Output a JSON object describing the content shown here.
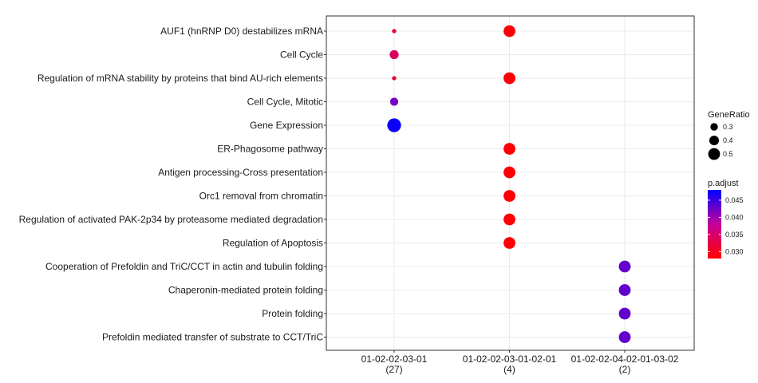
{
  "chart_data": {
    "type": "scatter",
    "title": "",
    "xlabel": "",
    "ylabel": "",
    "grid": true,
    "legend_position": "right",
    "categories_x": [
      {
        "label": "01-02-02-03-01",
        "count": "(27)"
      },
      {
        "label": "01-02-02-03-01-02-01",
        "count": "(4)"
      },
      {
        "label": "01-02-02-04-02-01-03-02",
        "count": "(2)"
      }
    ],
    "categories_y": [
      "AUF1 (hnRNP D0) destabilizes mRNA",
      "Cell Cycle",
      "Regulation of mRNA stability by proteins that bind AU-rich elements",
      "Cell Cycle, Mitotic",
      "Gene Expression",
      "ER-Phagosome pathway",
      "Antigen processing-Cross presentation",
      "Orc1 removal from chromatin",
      "Regulation of activated PAK-2p34 by proteasome mediated degradation",
      "Regulation of Apoptosis",
      "Cooperation of Prefoldin and TriC/CCT  in actin and tubulin folding",
      "Chaperonin-mediated protein folding",
      "Protein folding",
      "Prefoldin mediated transfer of substrate  to CCT/TriC"
    ],
    "points": [
      {
        "x": 0,
        "y": 0,
        "gene_ratio": 0.15,
        "p_adjust": 0.031
      },
      {
        "x": 1,
        "y": 0,
        "gene_ratio": 0.5,
        "p_adjust": 0.0285
      },
      {
        "x": 0,
        "y": 1,
        "gene_ratio": 0.37,
        "p_adjust": 0.034
      },
      {
        "x": 0,
        "y": 2,
        "gene_ratio": 0.15,
        "p_adjust": 0.031
      },
      {
        "x": 1,
        "y": 2,
        "gene_ratio": 0.5,
        "p_adjust": 0.0285
      },
      {
        "x": 0,
        "y": 3,
        "gene_ratio": 0.33,
        "p_adjust": 0.042
      },
      {
        "x": 0,
        "y": 4,
        "gene_ratio": 0.59,
        "p_adjust": 0.0475
      },
      {
        "x": 1,
        "y": 5,
        "gene_ratio": 0.5,
        "p_adjust": 0.0282
      },
      {
        "x": 1,
        "y": 6,
        "gene_ratio": 0.5,
        "p_adjust": 0.0282
      },
      {
        "x": 1,
        "y": 7,
        "gene_ratio": 0.5,
        "p_adjust": 0.0282
      },
      {
        "x": 1,
        "y": 8,
        "gene_ratio": 0.5,
        "p_adjust": 0.0282
      },
      {
        "x": 1,
        "y": 9,
        "gene_ratio": 0.5,
        "p_adjust": 0.0282
      },
      {
        "x": 2,
        "y": 10,
        "gene_ratio": 0.5,
        "p_adjust": 0.043
      },
      {
        "x": 2,
        "y": 11,
        "gene_ratio": 0.5,
        "p_adjust": 0.043
      },
      {
        "x": 2,
        "y": 12,
        "gene_ratio": 0.5,
        "p_adjust": 0.043
      },
      {
        "x": 2,
        "y": 13,
        "gene_ratio": 0.5,
        "p_adjust": 0.043
      }
    ],
    "size_legend": {
      "title": "GeneRatio",
      "values": [
        0.3,
        0.4,
        0.5
      ],
      "labels": [
        "0.3",
        "0.4",
        "0.5"
      ]
    },
    "color_legend": {
      "title": "p.adjust",
      "range": [
        0.028,
        0.048
      ],
      "ticks": [
        0.03,
        0.035,
        0.04,
        0.045
      ],
      "tick_labels": [
        "0.030",
        "0.035",
        "0.040",
        "0.045"
      ],
      "low_color": "#ff0000",
      "high_color": "#0000ff"
    }
  }
}
